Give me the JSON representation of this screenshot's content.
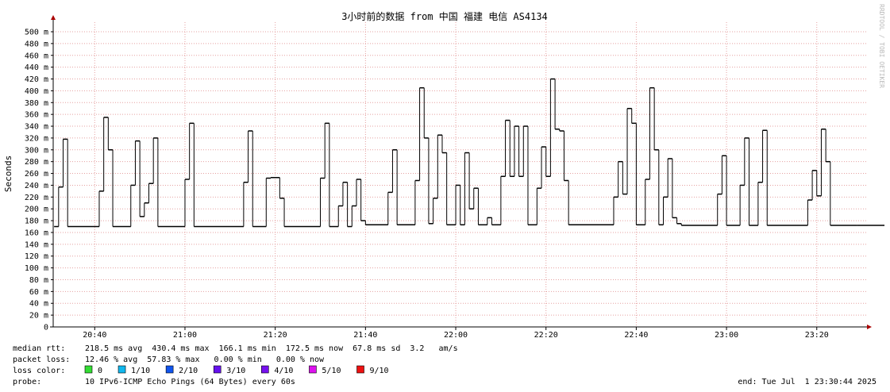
{
  "chart_data": {
    "type": "line",
    "title": "3小时前的数据 from 中国 福建 电信 AS4134",
    "y_label": "Seconds",
    "watermark": "RRDTOOL / TOBI OETIKER",
    "color": "#000000",
    "grid": true,
    "x": [
      1231,
      1232,
      1233,
      1234,
      1241,
      1242,
      1243,
      1244,
      1248,
      1249,
      1250,
      1251,
      1252,
      1253,
      1254,
      1260,
      1261,
      1262,
      1273,
      1274,
      1275,
      1278,
      1279,
      1281,
      1282,
      1290,
      1291,
      1292,
      1294,
      1295,
      1296,
      1297,
      1298,
      1299,
      1300,
      1305,
      1306,
      1307,
      1311,
      1312,
      1313,
      1314,
      1315,
      1316,
      1317,
      1318,
      1320,
      1321,
      1322,
      1323,
      1324,
      1325,
      1327,
      1328,
      1330,
      1331,
      1332,
      1333,
      1334,
      1335,
      1336,
      1338,
      1339,
      1340,
      1341,
      1342,
      1343,
      1344,
      1345,
      1355,
      1356,
      1357,
      1358,
      1359,
      1360,
      1362,
      1363,
      1364,
      1365,
      1366,
      1367,
      1368,
      1369,
      1370,
      1378,
      1379,
      1380,
      1383,
      1384,
      1385,
      1387,
      1388,
      1389,
      1398,
      1399,
      1400,
      1401,
      1402,
      1403,
      1409
    ],
    "values": [
      0.17,
      0.237,
      0.318,
      0.17,
      0.23,
      0.355,
      0.3,
      0.17,
      0.24,
      0.315,
      0.187,
      0.21,
      0.243,
      0.32,
      0.17,
      0.25,
      0.345,
      0.17,
      0.245,
      0.332,
      0.17,
      0.252,
      0.253,
      0.218,
      0.17,
      0.252,
      0.345,
      0.17,
      0.205,
      0.245,
      0.17,
      0.205,
      0.25,
      0.18,
      0.173,
      0.228,
      0.3,
      0.173,
      0.248,
      0.405,
      0.32,
      0.175,
      0.218,
      0.325,
      0.295,
      0.173,
      0.24,
      0.173,
      0.295,
      0.2,
      0.235,
      0.173,
      0.185,
      0.173,
      0.255,
      0.35,
      0.255,
      0.34,
      0.255,
      0.34,
      0.173,
      0.235,
      0.305,
      0.255,
      0.42,
      0.335,
      0.332,
      0.248,
      0.173,
      0.22,
      0.28,
      0.225,
      0.37,
      0.345,
      0.173,
      0.25,
      0.405,
      0.3,
      0.173,
      0.22,
      0.285,
      0.185,
      0.175,
      0.172,
      0.225,
      0.29,
      0.172,
      0.24,
      0.32,
      0.172,
      0.245,
      0.333,
      0.172,
      0.215,
      0.265,
      0.222,
      0.335,
      0.28,
      0.172,
      0.172
    ],
    "xlim": [
      1230.8,
      1411.3
    ],
    "xticks": [
      {
        "value": 1240,
        "label": "20:40"
      },
      {
        "value": 1260,
        "label": "21:00"
      },
      {
        "value": 1280,
        "label": "21:20"
      },
      {
        "value": 1300,
        "label": "21:40"
      },
      {
        "value": 1320,
        "label": "22:00"
      },
      {
        "value": 1340,
        "label": "22:20"
      },
      {
        "value": 1360,
        "label": "22:40"
      },
      {
        "value": 1380,
        "label": "23:00"
      },
      {
        "value": 1400,
        "label": "23:20"
      }
    ],
    "ylim": [
      0,
      0.5
    ],
    "yticks": [
      0,
      {
        "value": 0.02,
        "label": "20 m"
      },
      {
        "value": 0.04,
        "label": "40 m"
      },
      {
        "value": 0.06,
        "label": "60 m"
      },
      {
        "value": 0.08,
        "label": "80 m"
      },
      {
        "value": 0.1,
        "label": "100 m"
      },
      {
        "value": 0.12,
        "label": "120 m"
      },
      {
        "value": 0.14,
        "label": "140 m"
      },
      {
        "value": 0.16,
        "label": "160 m"
      },
      {
        "value": 0.18,
        "label": "180 m"
      },
      {
        "value": 0.2,
        "label": "200 m"
      },
      {
        "value": 0.22,
        "label": "220 m"
      },
      {
        "value": 0.24,
        "label": "240 m"
      },
      {
        "value": 0.26,
        "label": "260 m"
      },
      {
        "value": 0.28,
        "label": "280 m"
      },
      {
        "value": 0.3,
        "label": "300 m"
      },
      {
        "value": 0.32,
        "label": "320 m"
      },
      {
        "value": 0.34,
        "label": "340 m"
      },
      {
        "value": 0.36,
        "label": "360 m"
      },
      {
        "value": 0.38,
        "label": "380 m"
      },
      {
        "value": 0.4,
        "label": "400 m"
      },
      {
        "value": 0.42,
        "label": "420 m"
      },
      {
        "value": 0.44,
        "label": "440 m"
      },
      {
        "value": 0.46,
        "label": "460 m"
      },
      {
        "value": 0.48,
        "label": "480 m"
      },
      {
        "value": 0.5,
        "label": "500 m"
      }
    ],
    "stats": [
      {
        "label": "median rtt:",
        "text": "218.5 ms avg  430.4 ms max  166.1 ms min  172.5 ms now  67.8 ms sd  3.2   am/s"
      },
      {
        "label": "packet loss:",
        "text": "12.46 % avg  57.83 % max   0.00 % min   0.00 % now"
      }
    ],
    "loss_color_label": "loss color:",
    "loss_colors": [
      {
        "name": "0",
        "color": "#33dd33"
      },
      {
        "name": "1/10",
        "color": "#11b8ee"
      },
      {
        "name": "2/10",
        "color": "#1155ee"
      },
      {
        "name": "3/10",
        "color": "#6611ee"
      },
      {
        "name": "4/10",
        "color": "#7711ee"
      },
      {
        "name": "5/10",
        "color": "#dd11ee"
      },
      {
        "name": "9/10",
        "color": "#ee1111"
      }
    ],
    "probe_label": "probe:",
    "probe": "10 IPv6-ICMP Echo Pings (64 Bytes) every 60s",
    "end": "end: Tue Jul  1 23:30:44 2025"
  }
}
